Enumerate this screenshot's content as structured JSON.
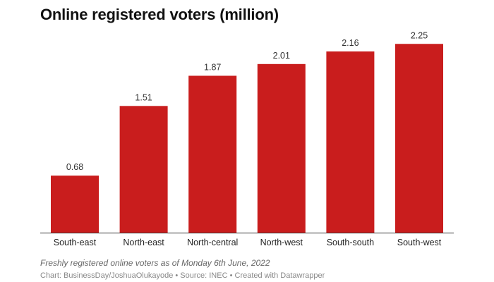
{
  "title": "Online registered voters (million)",
  "notes": "Freshly registered online voters as of Monday 6th June, 2022",
  "byline": "Chart: BusinessDay/JoshuaOlukayode • Source: INEC • Created with Datawrapper",
  "chart_data": {
    "type": "bar",
    "title": "Online registered voters (million)",
    "categories": [
      "South-east",
      "North-east",
      "North-central",
      "North-west",
      "South-south",
      "South-west"
    ],
    "values": [
      0.68,
      1.51,
      1.87,
      2.01,
      2.16,
      2.25
    ],
    "data_labels": [
      "0.68",
      "1.51",
      "1.87",
      "2.01",
      "2.16",
      "2.25"
    ],
    "xlabel": "",
    "ylabel": "",
    "ylim": [
      0,
      2.25
    ],
    "grid": false,
    "color": "#c91d1d"
  }
}
